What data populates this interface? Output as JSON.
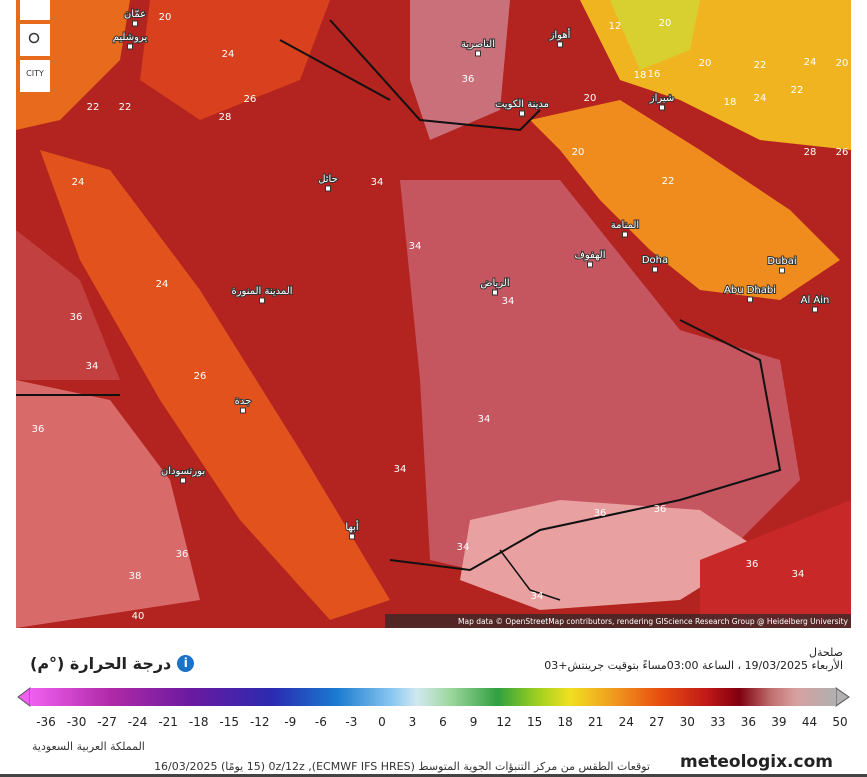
{
  "map": {
    "attribution": "Map data © OpenStreetMap contributors, rendering GIScience Research Group @ Heidelberg University",
    "control_label": "CITY",
    "cities": [
      "عمّان",
      "يروشليم",
      "الناصرية",
      "أهواز",
      "مدينة الكويت",
      "شيراز",
      "حائل",
      "المنامة",
      "الهفوف",
      "Doha",
      "Dubai",
      "Abu Dhabi",
      "Al Ain",
      "الرياض",
      "المدينة المنورة",
      "جدة",
      "بورتسودان",
      "أبها"
    ],
    "isotherms": [
      20,
      24,
      22,
      22,
      26,
      28,
      24,
      36,
      34,
      34,
      34,
      24,
      36,
      34,
      26,
      36,
      34,
      34,
      36,
      38,
      40,
      36,
      36,
      34,
      34,
      20,
      20,
      22,
      12,
      20,
      18,
      16,
      20,
      22,
      24,
      20,
      18,
      24,
      22,
      28,
      26,
      36,
      34
    ]
  },
  "legend": {
    "title": "درجة الحرارة (°م)",
    "location": "صلحةل",
    "valid_time": "الأربعاء 19/03/2025 ، الساعة 03:00مساءً بتوقيت جرينتش+03",
    "ticks": [
      -36,
      -30,
      -27,
      -24,
      -21,
      -18,
      -15,
      -12,
      -9,
      -6,
      -3,
      0,
      3,
      6,
      9,
      12,
      15,
      18,
      21,
      24,
      27,
      30,
      33,
      36,
      39,
      44,
      50
    ],
    "region": "المملكة العربية السعودية",
    "source": "توقعات الطقس من مركز التنبؤات الجوية المتوسط (ECMWF IFS HRES), 0z/12z (15 يومًا) 16/03/2025",
    "brand": "meteologix.com"
  }
}
